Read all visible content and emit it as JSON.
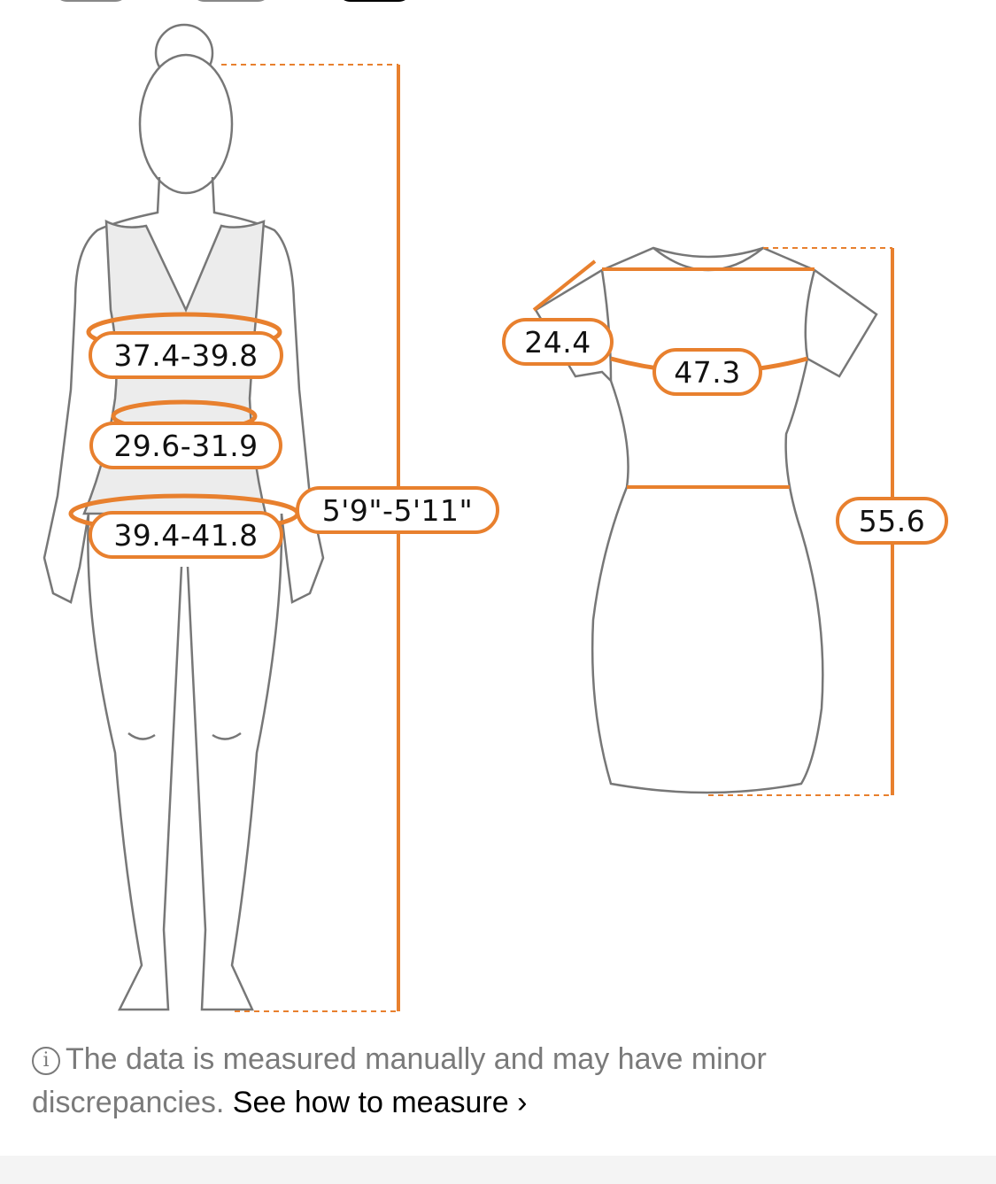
{
  "size_tabs": [
    {
      "selected": false
    },
    {
      "selected": false
    },
    {
      "selected": true
    }
  ],
  "body_measurements": {
    "bust": "37.4-39.8",
    "waist": "29.6-31.9",
    "hips": "39.4-41.8",
    "height": "5'9\"-5'11\""
  },
  "garment_measurements": {
    "sleeve": "24.4",
    "bust": "47.3",
    "length": "55.6"
  },
  "note": {
    "text": "The data is measured manually and may have minor discrepancies.",
    "link": "See how to measure",
    "link_arrow": "›",
    "icon": "info-icon"
  },
  "colors": {
    "accent": "#e8802e",
    "outline": "#777777",
    "text_muted": "#7a7a7a"
  }
}
